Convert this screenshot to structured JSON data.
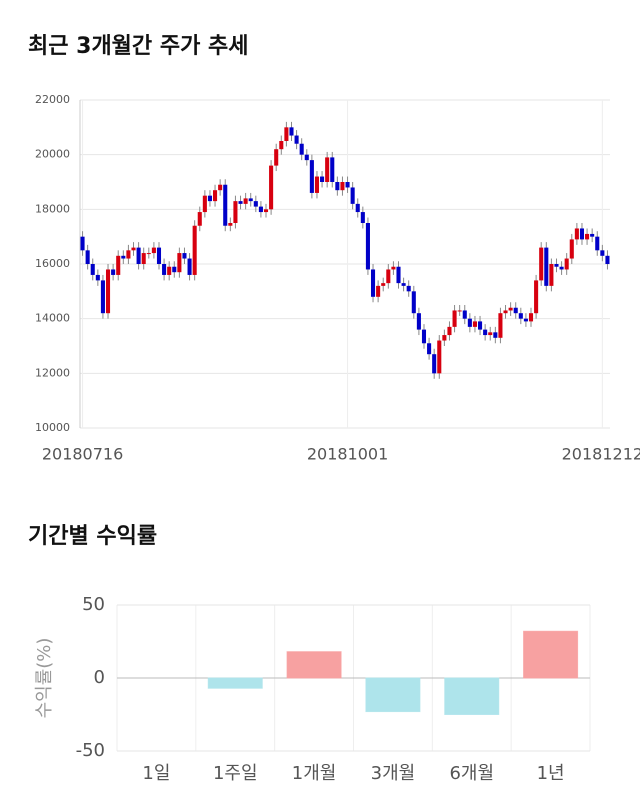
{
  "chart_data": [
    {
      "type": "candlestick",
      "title": "최근 3개월간 주가 추세",
      "categories": [
        "20180716",
        null,
        null,
        null,
        null,
        null,
        null,
        null,
        null,
        null,
        null,
        null,
        null,
        null,
        null,
        null,
        null,
        null,
        null,
        null,
        null,
        null,
        null,
        null,
        null,
        null,
        null,
        null,
        null,
        null,
        null,
        null,
        null,
        null,
        null,
        null,
        null,
        null,
        null,
        null,
        null,
        null,
        null,
        null,
        null,
        null,
        null,
        null,
        null,
        null,
        null,
        null,
        "20181001",
        null,
        null,
        null,
        null,
        null,
        null,
        null,
        null,
        null,
        null,
        null,
        null,
        null,
        null,
        null,
        null,
        null,
        null,
        null,
        null,
        null,
        null,
        null,
        null,
        null,
        null,
        null,
        null,
        null,
        null,
        null,
        null,
        null,
        null,
        null,
        null,
        null,
        null,
        null,
        null,
        null,
        null,
        null,
        null,
        null,
        null,
        null,
        null,
        null,
        "20181212",
        null
      ],
      "open": [
        17000,
        16500,
        16000,
        15600,
        15400,
        14200,
        15800,
        15600,
        16300,
        16200,
        16500,
        16600,
        16000,
        16400,
        16400,
        16600,
        16000,
        15600,
        15900,
        15700,
        16400,
        16200,
        15600,
        17400,
        17900,
        18500,
        18300,
        18700,
        18900,
        17400,
        17500,
        18300,
        18200,
        18400,
        18300,
        18100,
        17900,
        18000,
        19600,
        20200,
        20500,
        21000,
        20700,
        20400,
        20000,
        19800,
        18600,
        19200,
        19000,
        19900,
        19000,
        18700,
        19000,
        18800,
        18200,
        17900,
        17500,
        15800,
        14800,
        15200,
        15300,
        15800,
        15900,
        15300,
        15200,
        15000,
        14200,
        13600,
        13100,
        12700,
        12000,
        13200,
        13400,
        13700,
        14300,
        14300,
        14000,
        13700,
        13900,
        13600,
        13400,
        13500,
        13300,
        14200,
        14300,
        14400,
        14200,
        14000,
        13900,
        14200,
        15400,
        16600,
        15200,
        16000,
        15900,
        15800,
        16200,
        16900,
        17300,
        16900,
        17100,
        17000,
        16500,
        16300
      ],
      "close": [
        16500,
        16000,
        15600,
        15400,
        14200,
        15800,
        15600,
        16300,
        16200,
        16500,
        16600,
        16000,
        16400,
        16400,
        16600,
        16000,
        15600,
        15900,
        15700,
        16400,
        16200,
        15600,
        17400,
        17900,
        18500,
        18300,
        18700,
        18900,
        17400,
        17500,
        18300,
        18200,
        18400,
        18300,
        18100,
        17900,
        18000,
        19600,
        20200,
        20500,
        21000,
        20700,
        20400,
        20000,
        19800,
        18600,
        19200,
        19000,
        19900,
        19000,
        18700,
        19000,
        18800,
        18200,
        17900,
        17500,
        15800,
        14800,
        15200,
        15300,
        15800,
        15900,
        15300,
        15200,
        15000,
        14200,
        13600,
        13100,
        12700,
        12000,
        13200,
        13400,
        13700,
        14300,
        14300,
        14000,
        13700,
        13900,
        13600,
        13400,
        13500,
        13300,
        14200,
        14300,
        14400,
        14200,
        14000,
        13900,
        14200,
        15400,
        16600,
        15200,
        16000,
        15900,
        15800,
        16200,
        16900,
        17300,
        16900,
        17100,
        17000,
        16500,
        16300,
        16000
      ],
      "high": [
        17200,
        16700,
        16200,
        15800,
        15600,
        16000,
        16000,
        16500,
        16500,
        16700,
        16800,
        16800,
        16600,
        16600,
        16800,
        16800,
        16200,
        16100,
        16100,
        16600,
        16600,
        16400,
        17600,
        18100,
        18700,
        18700,
        18900,
        19100,
        19100,
        17700,
        18500,
        18500,
        18600,
        18600,
        18500,
        18300,
        18200,
        19800,
        20400,
        20700,
        21200,
        21200,
        20900,
        20600,
        20200,
        20000,
        19400,
        19400,
        20100,
        20100,
        19200,
        19200,
        19200,
        19000,
        18400,
        18100,
        17700,
        16000,
        15400,
        15500,
        16000,
        16100,
        16100,
        15500,
        15400,
        15200,
        14400,
        13800,
        13300,
        12900,
        13400,
        13600,
        13900,
        14500,
        14500,
        14500,
        14200,
        14100,
        14100,
        13800,
        13700,
        13700,
        14400,
        14500,
        14600,
        14600,
        14400,
        14200,
        14400,
        15600,
        16800,
        16800,
        16200,
        16200,
        16100,
        16400,
        17100,
        17500,
        17500,
        17300,
        17300,
        17200,
        16700,
        16500
      ],
      "low": [
        16300,
        15800,
        15400,
        15200,
        14000,
        14000,
        15400,
        15400,
        16000,
        16000,
        16300,
        15800,
        15800,
        16200,
        16200,
        15800,
        15400,
        15400,
        15500,
        15500,
        16000,
        15400,
        15400,
        17200,
        17700,
        18100,
        18100,
        18500,
        17200,
        17200,
        17300,
        18000,
        18000,
        18100,
        17900,
        17700,
        17700,
        17800,
        19400,
        20000,
        20300,
        20500,
        20200,
        19800,
        19600,
        18400,
        18400,
        18800,
        18800,
        18800,
        18500,
        18500,
        18600,
        18000,
        17700,
        17300,
        15600,
        14600,
        14600,
        15000,
        15100,
        15600,
        15100,
        15000,
        14800,
        14000,
        13400,
        12900,
        12500,
        11800,
        11800,
        13000,
        13200,
        13500,
        14100,
        13800,
        13500,
        13500,
        13400,
        13200,
        13200,
        13100,
        13100,
        14000,
        14100,
        14000,
        13800,
        13700,
        13700,
        14000,
        15200,
        15000,
        15000,
        15700,
        15600,
        15600,
        16000,
        16700,
        16700,
        16700,
        16800,
        16300,
        16100,
        15800
      ],
      "up_color": "#d7000f",
      "down_color": "#0000c8",
      "ylim": [
        10000,
        22000
      ],
      "yticks": [
        10000,
        12000,
        14000,
        16000,
        18000,
        20000,
        22000
      ],
      "grid": true
    },
    {
      "type": "bar",
      "title": "기간별 수익률",
      "ylabel": "수익률(%)",
      "categories": [
        "1일",
        "1주일",
        "1개월",
        "3개월",
        "6개월",
        "1년"
      ],
      "values": [
        0,
        -7,
        18,
        -23,
        -25,
        32
      ],
      "colors": [
        "#ffa6a6",
        "#b3ebf2",
        "#ffa6a6",
        "#b3ebf2",
        "#b3ebf2",
        "#ffa6a6"
      ],
      "ylim": [
        -50,
        50
      ],
      "yticks": [
        -50,
        0,
        50
      ],
      "grid": true
    }
  ]
}
